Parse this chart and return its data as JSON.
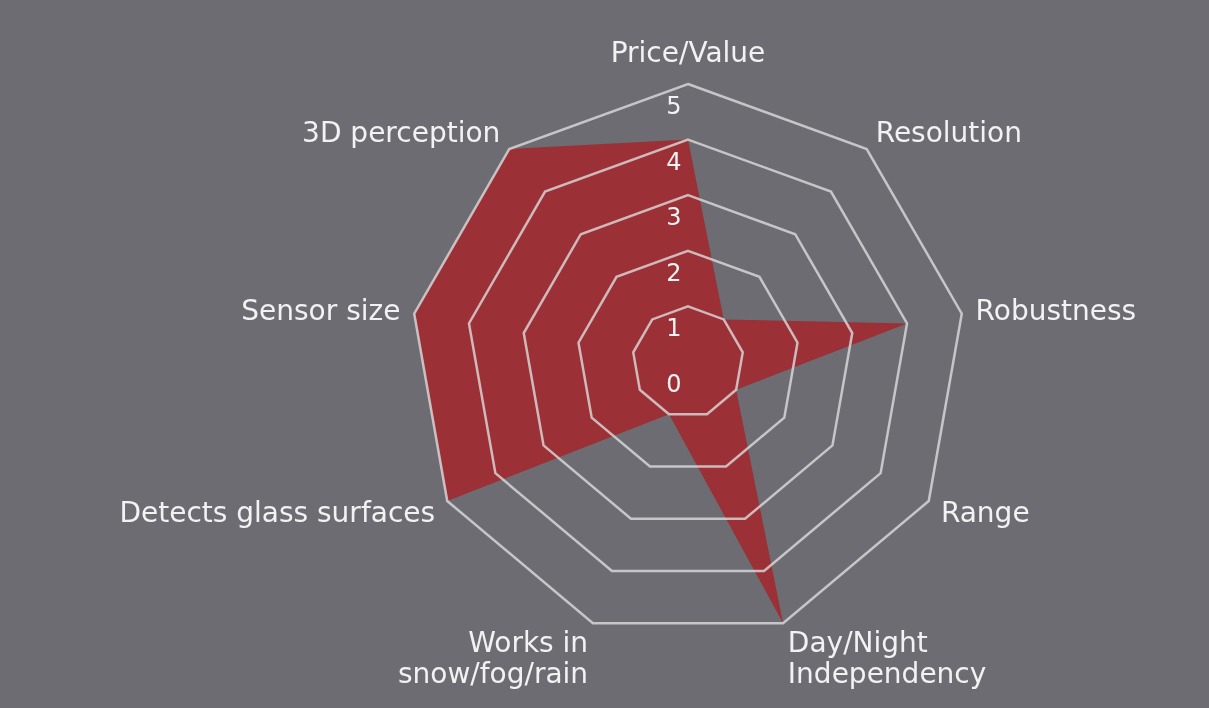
{
  "chart_data": {
    "type": "radar",
    "categories": [
      "Price/Value",
      "Resolution",
      "Robustness",
      "Range",
      "Day/Night\nIndependency",
      "Works in\nsnow/fog/rain",
      "Detects glass surfaces",
      "Sensor size",
      "3D perception"
    ],
    "ylim": [
      0,
      5
    ],
    "yticks": [
      0,
      1,
      2,
      3,
      4,
      5
    ],
    "grid": true,
    "series": [
      {
        "color": "#a3262c",
        "values": [
          4,
          1,
          4,
          1,
          5,
          1,
          5,
          5,
          5
        ]
      }
    ]
  }
}
